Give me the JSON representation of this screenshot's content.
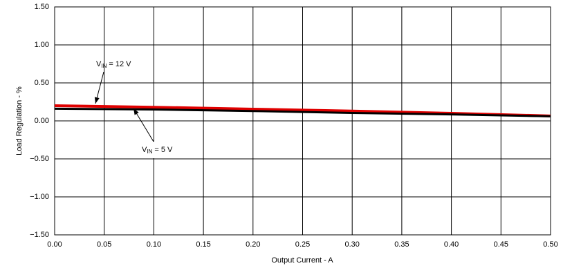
{
  "chart_data": {
    "type": "line",
    "xlabel": "Output Current - A",
    "ylabel": "Load Regulation  - %",
    "x": [
      0,
      0.1,
      0.2,
      0.3,
      0.4,
      0.5
    ],
    "series": [
      {
        "color": "#e00000",
        "values": [
          0.2,
          0.18,
          0.155,
          0.13,
          0.1,
          0.065
        ]
      },
      {
        "color": "#000000",
        "values": [
          0.16,
          0.15,
          0.13,
          0.105,
          0.085,
          0.06
        ]
      }
    ],
    "annotations": [
      {
        "symbol": "V",
        "subscript": "IN",
        "text": "= 12 V"
      },
      {
        "symbol": "V",
        "subscript": "IN",
        "text": "= 5 V"
      }
    ],
    "xlim": [
      0,
      0.5
    ],
    "ylim": [
      -1.5,
      1.5
    ],
    "xticks": [
      {
        "value": 0,
        "label": "0.00"
      },
      {
        "value": 0.05,
        "label": "0.05"
      },
      {
        "value": 0.1,
        "label": "0.10"
      },
      {
        "value": 0.15,
        "label": "0.15"
      },
      {
        "value": 0.2,
        "label": "0.20"
      },
      {
        "value": 0.25,
        "label": "0.25"
      },
      {
        "value": 0.3,
        "label": "0.30"
      },
      {
        "value": 0.35,
        "label": "0.35"
      },
      {
        "value": 0.4,
        "label": "0.40"
      },
      {
        "value": 0.45,
        "label": "0.45"
      },
      {
        "value": 0.5,
        "label": "0.50"
      }
    ],
    "yticks": [
      {
        "value": -1.5,
        "label": "−1.50"
      },
      {
        "value": -1,
        "label": "−1.00"
      },
      {
        "value": -0.5,
        "label": "−0.50"
      },
      {
        "value": 0,
        "label": "0.00"
      },
      {
        "value": 0.5,
        "label": "0.50"
      },
      {
        "value": 1,
        "label": "1.00"
      },
      {
        "value": 1.5,
        "label": "1.50"
      }
    ],
    "grid": true
  }
}
